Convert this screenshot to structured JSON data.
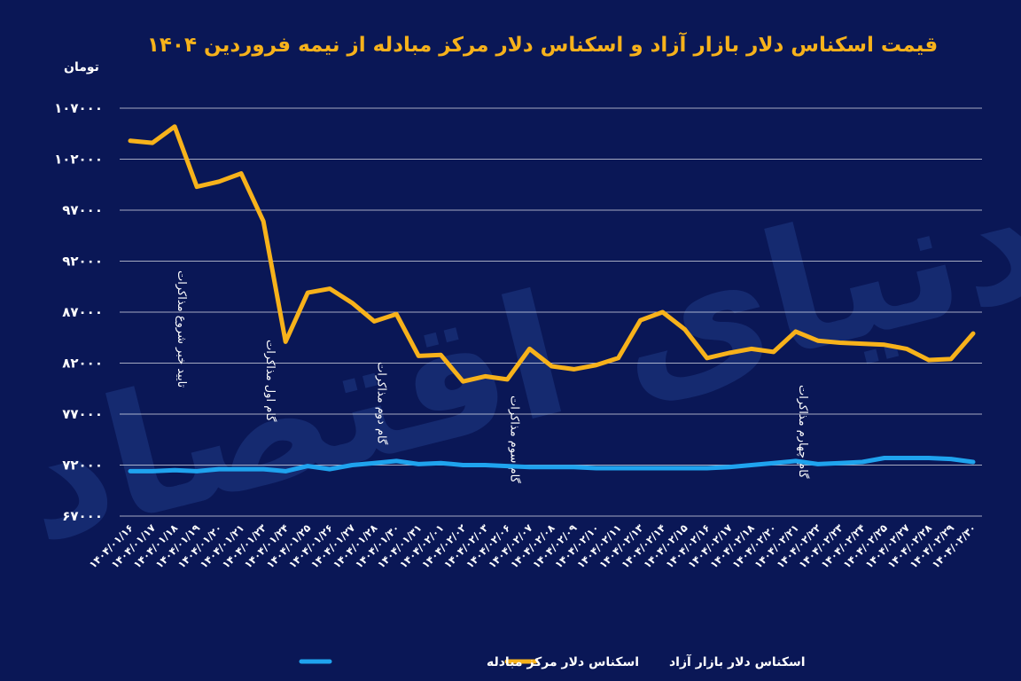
{
  "watermark": "دنیای اقتصاد",
  "chart_data": {
    "type": "line",
    "title": "قیمت اسکناس دلار بازار آزاد و اسکناس دلار مرکز مبادله از نیمه فروردین ۱۴۰۴",
    "ylabel": "تومان",
    "xlabel": "",
    "ylim": [
      67000,
      107000
    ],
    "yticks": [
      67000,
      72000,
      77000,
      82000,
      87000,
      92000,
      97000,
      102000,
      107000
    ],
    "ytick_labels": [
      "۶۷۰۰۰",
      "۷۲۰۰۰",
      "۷۷۰۰۰",
      "۸۲۰۰۰",
      "۸۷۰۰۰",
      "۹۲۰۰۰",
      "۹۷۰۰۰",
      "۱۰۲۰۰۰",
      "۱۰۷۰۰۰"
    ],
    "grid": true,
    "legend_position": "bottom-center",
    "categories": [
      "۱۴۰۴/۰۱/۱۶",
      "۱۴۰۴/۰۱/۱۷",
      "۱۴۰۴/۰۱/۱۸",
      "۱۴۰۴/۰۱/۱۹",
      "۱۴۰۴/۰۱/۲۰",
      "۱۴۰۴/۰۱/۲۱",
      "۱۴۰۴/۰۱/۲۳",
      "۱۴۰۴/۰۱/۲۴",
      "۱۴۰۴/۰۱/۲۵",
      "۱۴۰۴/۰۱/۲۶",
      "۱۴۰۴/۰۱/۲۷",
      "۱۴۰۴/۰۱/۲۸",
      "۱۴۰۴/۰۱/۳۰",
      "۱۴۰۴/۰۱/۳۱",
      "۱۴۰۴/۰۲/۰۱",
      "۱۴۰۴/۰۲/۰۲",
      "۱۴۰۴/۰۲/۰۳",
      "۱۴۰۴/۰۲/۰۶",
      "۱۴۰۴/۰۲/۰۷",
      "۱۴۰۴/۰۲/۰۸",
      "۱۴۰۴/۰۲/۰۹",
      "۱۴۰۴/۰۲/۱۰",
      "۱۴۰۴/۰۲/۱۱",
      "۱۴۰۴/۰۲/۱۳",
      "۱۴۰۴/۰۲/۱۴",
      "۱۴۰۴/۰۲/۱۵",
      "۱۴۰۴/۰۲/۱۶",
      "۱۴۰۴/۰۲/۱۷",
      "۱۴۰۴/۰۲/۱۸",
      "۱۴۰۴/۰۲/۲۰",
      "۱۴۰۴/۰۲/۲۱",
      "۱۴۰۴/۰۲/۲۲",
      "۱۴۰۴/۰۲/۲۳",
      "۱۴۰۴/۰۲/۲۴",
      "۱۴۰۴/۰۲/۲۵",
      "۱۴۰۴/۰۲/۲۷",
      "۱۴۰۴/۰۲/۲۸",
      "۱۴۰۴/۰۲/۲۹",
      "۱۴۰۴/۰۲/۳۰"
    ],
    "series": [
      {
        "name": "اسکناس دلار بازار آزاد",
        "color": "#f7b21b",
        "values": [
          103800,
          103600,
          105200,
          99300,
          99800,
          100600,
          95900,
          84100,
          88900,
          89300,
          87900,
          86100,
          86800,
          82700,
          82800,
          80200,
          80700,
          80400,
          83400,
          81700,
          81400,
          81800,
          82500,
          86200,
          87000,
          85300,
          82500,
          83000,
          83400,
          83100,
          85100,
          84200,
          84000,
          83900,
          83800,
          83400,
          82300,
          82400,
          84900
        ]
      },
      {
        "name": "اسکناس دلار مرکز مبادله",
        "color": "#1fa3ee",
        "values": [
          71400,
          71400,
          71500,
          71400,
          71600,
          71600,
          71600,
          71400,
          71900,
          71600,
          72000,
          72200,
          72400,
          72100,
          72200,
          72000,
          72000,
          71900,
          71800,
          71800,
          71800,
          71700,
          71700,
          71700,
          71700,
          71700,
          71700,
          71800,
          72000,
          72200,
          72400,
          72100,
          72200,
          72300,
          72700,
          72700,
          72700,
          72600,
          72300
        ]
      }
    ],
    "annotations": [
      {
        "text": "تایید خبر شروع مذاکرات",
        "category": "۱۴۰۴/۰۱/۱۸"
      },
      {
        "text": "گام اول مذاکرات",
        "category": "۱۴۰۴/۰۱/۲۳"
      },
      {
        "text": "گام دوم مذاکرات",
        "category": "۱۴۰۴/۰۱/۲۸"
      },
      {
        "text": "گام سوم مذاکرات",
        "category": "۱۴۰۴/۰۲/۰۶"
      },
      {
        "text": "گام چهارم مذاکرات",
        "category": "۱۴۰۴/۰۲/۲۱"
      }
    ]
  }
}
